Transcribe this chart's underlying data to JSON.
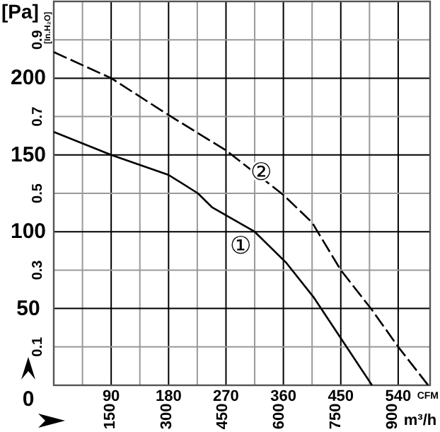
{
  "chart_data": {
    "type": "line",
    "xlabel": "CFM",
    "x2label": "m³/h",
    "ylabel": "[Pa]",
    "y2label": "[In.H₂O]",
    "xlim": [
      0,
      590
    ],
    "xticks": [
      {
        "value": 45,
        "label": null
      },
      90,
      {
        "value": 135,
        "label": null
      },
      180,
      {
        "value": 225,
        "label": null
      },
      270,
      {
        "value": 315,
        "label": null
      },
      360,
      {
        "value": 405,
        "label": null
      },
      450,
      {
        "value": 495,
        "label": null
      },
      540
    ],
    "x2lim": [
      0,
      1000
    ],
    "x2ticks": [
      150,
      300,
      450,
      600,
      750,
      900
    ],
    "ylim": [
      0,
      250
    ],
    "yticks": [
      0,
      {
        "value": 25,
        "label": null
      },
      50,
      {
        "value": 75,
        "label": null
      },
      100,
      {
        "value": 125,
        "label": null
      },
      150,
      {
        "value": 175,
        "label": null
      },
      200,
      {
        "value": 225,
        "label": null
      },
      {
        "value": 250,
        "label": null
      }
    ],
    "y2lim": [
      0,
      1.0
    ],
    "y2ticks": [
      0.1,
      0.3,
      0.5,
      0.7,
      0.9
    ],
    "grid": true,
    "series": [
      {
        "color": "#000000",
        "line_style": "solid",
        "x": [
          0,
          90,
          180,
          226,
          248,
          315,
          364,
          408,
          459,
          499
        ],
        "values": [
          165,
          150,
          137,
          125,
          116,
          100,
          80,
          57,
          25,
          0
        ]
      },
      {
        "color": "#000000",
        "line_style": "dashed",
        "x": [
          0,
          90,
          180,
          270,
          360,
          405,
          450,
          499,
          540,
          587
        ],
        "values": [
          217,
          200,
          176,
          153,
          124,
          106,
          75,
          49,
          25,
          0
        ]
      }
    ],
    "annotations": [
      {
        "text": "①",
        "x": 315,
        "y": 100
      },
      {
        "text": "②",
        "x": 360,
        "y": 124
      }
    ]
  }
}
